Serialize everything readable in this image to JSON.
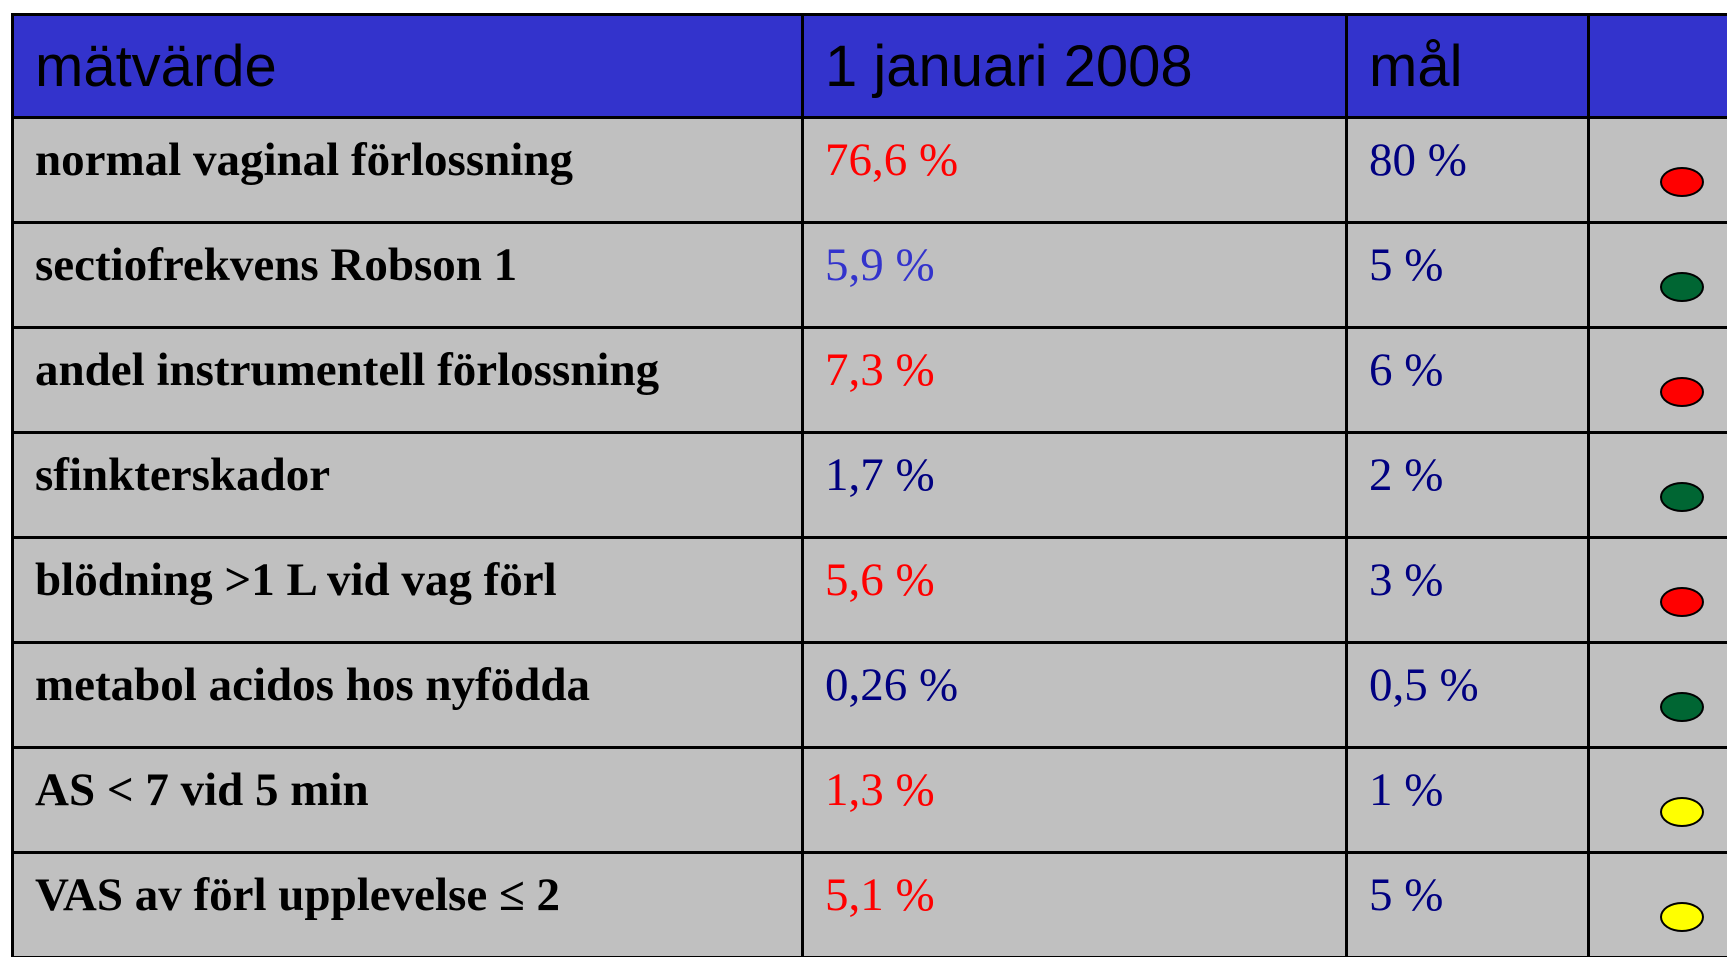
{
  "table": {
    "columns": [
      "mätvärde",
      "1 januari 2008",
      "mål",
      ""
    ],
    "rows": [
      {
        "label": "normal vaginal förlossning",
        "value": "76,6 %",
        "value_color": "#ff0000",
        "goal": "80 %",
        "status_color": "#ff0000"
      },
      {
        "label": "sectiofrekvens Robson 1",
        "value": "5,9 %",
        "value_color": "#3333cc",
        "goal": "5 %",
        "status_color": "#006633"
      },
      {
        "label": "andel instrumentell förlossning",
        "value": "7,3 %",
        "value_color": "#ff0000",
        "goal": "6 %",
        "status_color": "#ff0000"
      },
      {
        "label": "sfinkterskador",
        "value": "1,7 %",
        "value_color": "#000080",
        "goal": "2 %",
        "status_color": "#006633"
      },
      {
        "label": "blödning >1 L vid vag förl",
        "value": "5,6 %",
        "value_color": "#ff0000",
        "goal": "3 %",
        "status_color": "#ff0000"
      },
      {
        "label": "metabol acidos hos nyfödda",
        "value": "0,26 %",
        "value_color": "#000080",
        "goal": "0,5 %",
        "status_color": "#006633"
      },
      {
        "label": "AS < 7 vid 5 min",
        "value": "1,3 %",
        "value_color": "#ff0000",
        "goal": "1 %",
        "status_color": "#ffff00"
      },
      {
        "label": "VAS av förl upplevelse ≤ 2",
        "value": "5,1 %",
        "value_color": "#ff0000",
        "goal": "5 %",
        "status_color": "#ffff00"
      }
    ],
    "goal_color": "#000080"
  }
}
